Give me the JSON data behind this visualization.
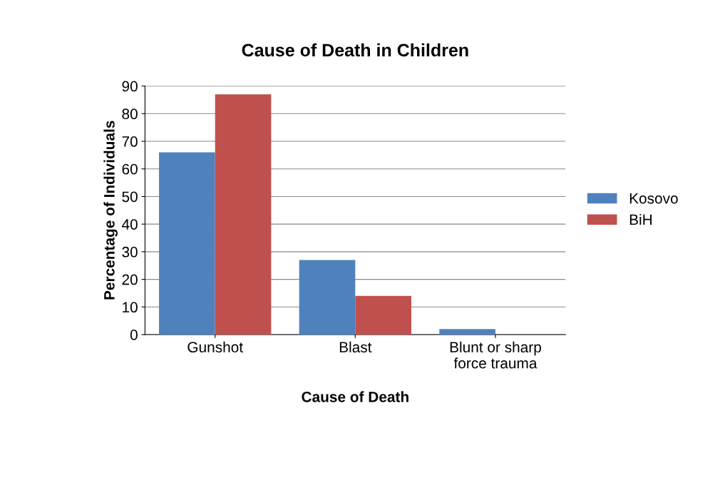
{
  "chart_data": {
    "type": "bar",
    "title": "Cause of Death in Children",
    "xlabel": "Cause of Death",
    "ylabel": "Percentage of Individuals",
    "categories": [
      "Gunshot",
      "Blast",
      "Blunt or sharp\nforce trauma"
    ],
    "series": [
      {
        "name": "Kosovo",
        "color": "#4f81bd",
        "values": [
          66,
          27,
          2
        ]
      },
      {
        "name": "BiH",
        "color": "#c0504d",
        "values": [
          87,
          14,
          0
        ]
      }
    ],
    "ylim": [
      0,
      90
    ],
    "yticks": [
      0,
      10,
      20,
      30,
      40,
      50,
      60,
      70,
      80,
      90
    ],
    "grid": "y",
    "legend": "right"
  }
}
